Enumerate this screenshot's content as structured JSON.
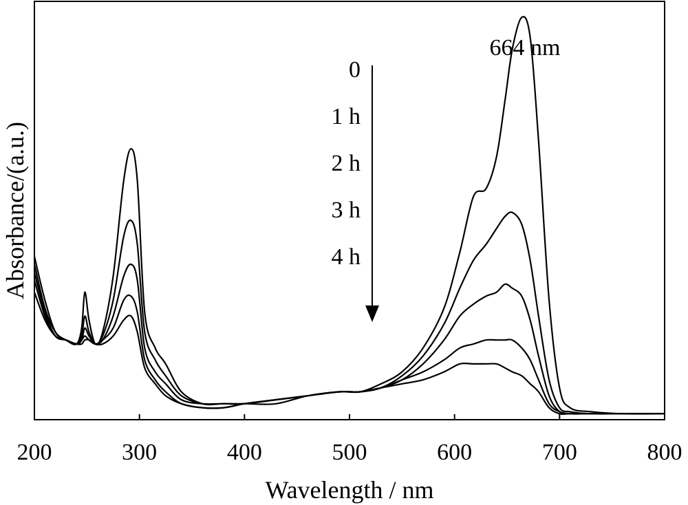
{
  "chart_data": {
    "type": "line",
    "title": "",
    "xlabel": "Wavelength / nm",
    "ylabel": "Absorbance/(a.u.)",
    "xlim": [
      200,
      800
    ],
    "ylim": [
      0,
      1.05
    ],
    "x_ticks": [
      "200",
      "300",
      "400",
      "500",
      "600",
      "700",
      "800"
    ],
    "y_ticks": [],
    "grid": false,
    "legend": "none",
    "annotations": {
      "peak_label": "664 nm",
      "time_labels": [
        "0",
        "1 h",
        "2 h",
        "3 h",
        "4 h"
      ],
      "arrow": "down"
    },
    "x": [
      200,
      210,
      220,
      230,
      240,
      245,
      248,
      252,
      258,
      265,
      275,
      285,
      292,
      298,
      305,
      315,
      325,
      340,
      360,
      380,
      400,
      430,
      460,
      490,
      510,
      530,
      550,
      570,
      590,
      605,
      618,
      630,
      640,
      648,
      655,
      664,
      672,
      680,
      690,
      700,
      710,
      730,
      760,
      800
    ],
    "series": [
      {
        "name": "0",
        "values": [
          0.41,
          0.3,
          0.22,
          0.2,
          0.19,
          0.23,
          0.32,
          0.25,
          0.19,
          0.22,
          0.36,
          0.6,
          0.68,
          0.6,
          0.27,
          0.18,
          0.14,
          0.07,
          0.04,
          0.04,
          0.04,
          0.04,
          0.06,
          0.07,
          0.07,
          0.09,
          0.12,
          0.18,
          0.28,
          0.42,
          0.56,
          0.58,
          0.66,
          0.8,
          0.93,
          1.01,
          0.96,
          0.7,
          0.3,
          0.08,
          0.03,
          0.02,
          0.015,
          0.015
        ]
      },
      {
        "name": "1 h",
        "values": [
          0.39,
          0.28,
          0.22,
          0.2,
          0.19,
          0.21,
          0.26,
          0.22,
          0.19,
          0.21,
          0.3,
          0.46,
          0.5,
          0.44,
          0.22,
          0.15,
          0.11,
          0.06,
          0.04,
          0.04,
          0.04,
          0.05,
          0.06,
          0.07,
          0.07,
          0.08,
          0.11,
          0.16,
          0.24,
          0.33,
          0.4,
          0.44,
          0.48,
          0.51,
          0.52,
          0.49,
          0.4,
          0.26,
          0.1,
          0.03,
          0.02,
          0.015,
          0.015,
          0.015
        ]
      },
      {
        "name": "2 h",
        "values": [
          0.37,
          0.27,
          0.21,
          0.2,
          0.19,
          0.2,
          0.23,
          0.21,
          0.19,
          0.2,
          0.26,
          0.36,
          0.39,
          0.35,
          0.18,
          0.12,
          0.09,
          0.05,
          0.04,
          0.04,
          0.04,
          0.05,
          0.06,
          0.07,
          0.07,
          0.08,
          0.1,
          0.14,
          0.2,
          0.26,
          0.29,
          0.31,
          0.32,
          0.34,
          0.33,
          0.31,
          0.25,
          0.16,
          0.06,
          0.02,
          0.015,
          0.015,
          0.015,
          0.015
        ]
      },
      {
        "name": "3 h",
        "values": [
          0.35,
          0.26,
          0.21,
          0.2,
          0.19,
          0.2,
          0.21,
          0.2,
          0.19,
          0.2,
          0.23,
          0.3,
          0.31,
          0.27,
          0.15,
          0.1,
          0.07,
          0.04,
          0.03,
          0.03,
          0.04,
          0.05,
          0.06,
          0.07,
          0.07,
          0.08,
          0.1,
          0.12,
          0.15,
          0.18,
          0.19,
          0.2,
          0.2,
          0.2,
          0.2,
          0.18,
          0.15,
          0.1,
          0.04,
          0.02,
          0.015,
          0.015,
          0.015,
          0.015
        ]
      },
      {
        "name": "4 h",
        "values": [
          0.32,
          0.25,
          0.21,
          0.2,
          0.19,
          0.19,
          0.2,
          0.2,
          0.19,
          0.19,
          0.21,
          0.25,
          0.26,
          0.22,
          0.13,
          0.09,
          0.06,
          0.04,
          0.03,
          0.03,
          0.04,
          0.05,
          0.06,
          0.07,
          0.07,
          0.08,
          0.09,
          0.1,
          0.12,
          0.14,
          0.14,
          0.14,
          0.14,
          0.13,
          0.12,
          0.11,
          0.09,
          0.07,
          0.03,
          0.015,
          0.015,
          0.015,
          0.015,
          0.015
        ]
      }
    ]
  }
}
